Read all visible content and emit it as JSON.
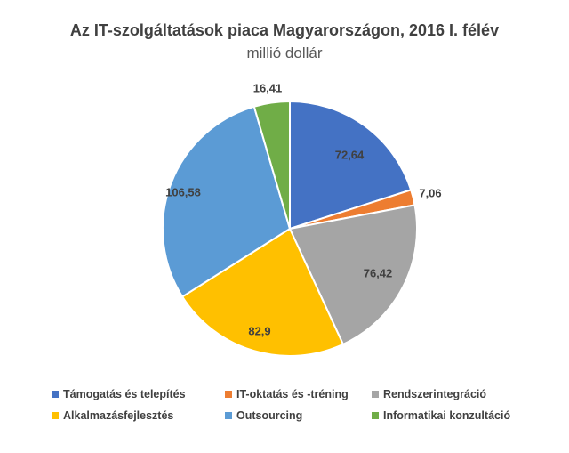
{
  "chart_data": {
    "type": "pie",
    "title": "Az IT-szolgáltatások piaca Magyarországon, 2016 I. félév",
    "subtitle": "millió dollár",
    "legend_position": "bottom",
    "slices": [
      {
        "name": "Támogatás és telepítés",
        "value": 72.64,
        "label": "72,64",
        "color": "#4472C4"
      },
      {
        "name": "IT-oktatás és -tréning",
        "value": 7.06,
        "label": "7,06",
        "color": "#ED7D31"
      },
      {
        "name": "Rendszerintegráció",
        "value": 76.42,
        "label": "76,42",
        "color": "#A5A5A5"
      },
      {
        "name": "Alkalmazásfejlesztés",
        "value": 82.9,
        "label": "82,9",
        "color": "#FFC000"
      },
      {
        "name": "Outsourcing",
        "value": 106.58,
        "label": "106,58",
        "color": "#5B9BD5"
      },
      {
        "name": "Informatikai konzultáció",
        "value": 16.41,
        "label": "16,41",
        "color": "#70AD47"
      }
    ]
  }
}
